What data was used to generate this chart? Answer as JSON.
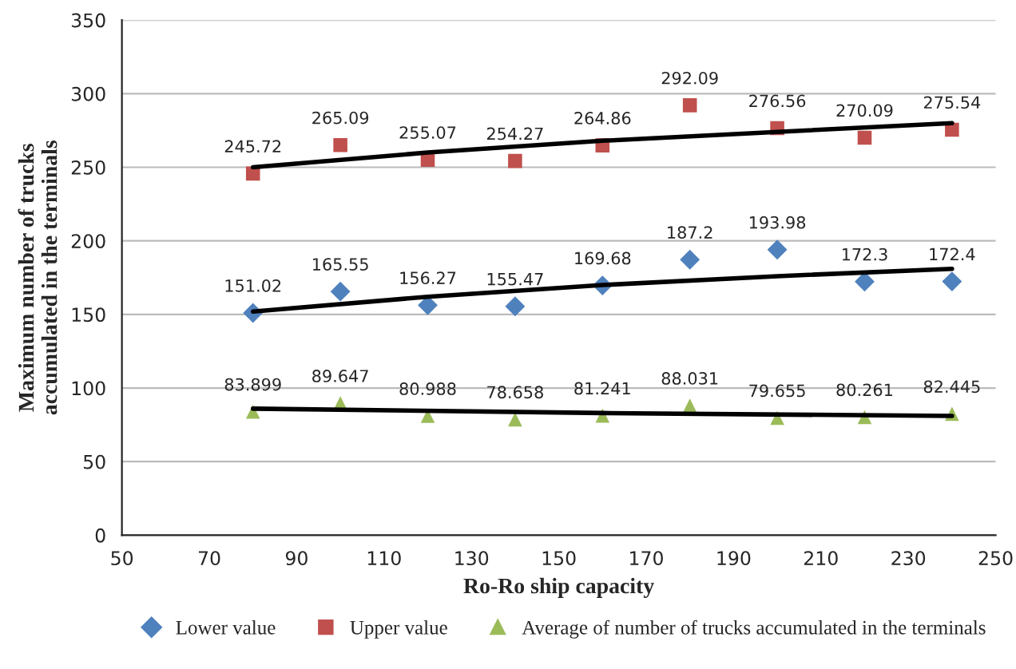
{
  "chart_data": {
    "type": "scatter",
    "xlabel": "Ro-Ro ship capacity",
    "ylabel": "Maximum number of trucks\naccumulated in the terminals",
    "x": [
      80,
      100,
      120,
      140,
      160,
      180,
      200,
      220,
      240
    ],
    "series": [
      {
        "name": "Lower value",
        "color": "#4f81bd",
        "marker": "diamond",
        "values": [
          151.02,
          165.55,
          156.27,
          155.47,
          169.68,
          187.2,
          193.98,
          172.3,
          172.4
        ],
        "value_labels": [
          "151.02",
          "165.55",
          "156.27",
          "155.47",
          "169.68",
          "187.2",
          "193.98",
          "172.3",
          "172.4"
        ]
      },
      {
        "name": "Upper value",
        "color": "#c0504d",
        "marker": "square",
        "values": [
          245.72,
          265.09,
          255.07,
          254.27,
          264.86,
          292.09,
          276.56,
          270.09,
          275.54
        ],
        "value_labels": [
          "245.72",
          "265.09",
          "255.07",
          "254.27",
          "264.86",
          "292.09",
          "276.56",
          "270.09",
          "275.54"
        ]
      },
      {
        "name": "Average of number of trucks accumulated in the terminals",
        "color": "#9bbb59",
        "marker": "triangle",
        "values": [
          83.899,
          89.647,
          80.988,
          78.658,
          81.241,
          88.031,
          79.655,
          80.261,
          82.445
        ],
        "value_labels": [
          "83.899",
          "89.647",
          "80.988",
          "78.658",
          "81.241",
          "88.031",
          "79.655",
          "80.261",
          "82.445"
        ]
      },
      {
        "type": "line",
        "color": "#000000",
        "marker": "none",
        "x": [
          80,
          120,
          160,
          200,
          240
        ],
        "values": [
          250,
          260,
          268,
          274,
          280
        ]
      },
      {
        "type": "line",
        "color": "#000000",
        "marker": "none",
        "x": [
          80,
          120,
          160,
          200,
          240
        ],
        "values": [
          152,
          162,
          170,
          176,
          181
        ]
      },
      {
        "type": "line",
        "color": "#000000",
        "marker": "none",
        "x": [
          80,
          160,
          240
        ],
        "values": [
          86,
          83,
          81
        ]
      }
    ],
    "xlim": [
      50,
      250
    ],
    "xticks": [
      50,
      70,
      90,
      110,
      130,
      150,
      170,
      190,
      210,
      230,
      250
    ],
    "ylim": [
      0,
      350
    ],
    "yticks": [
      0,
      50,
      100,
      150,
      200,
      250,
      300,
      350
    ],
    "grid": "y",
    "legend": "bottom"
  }
}
